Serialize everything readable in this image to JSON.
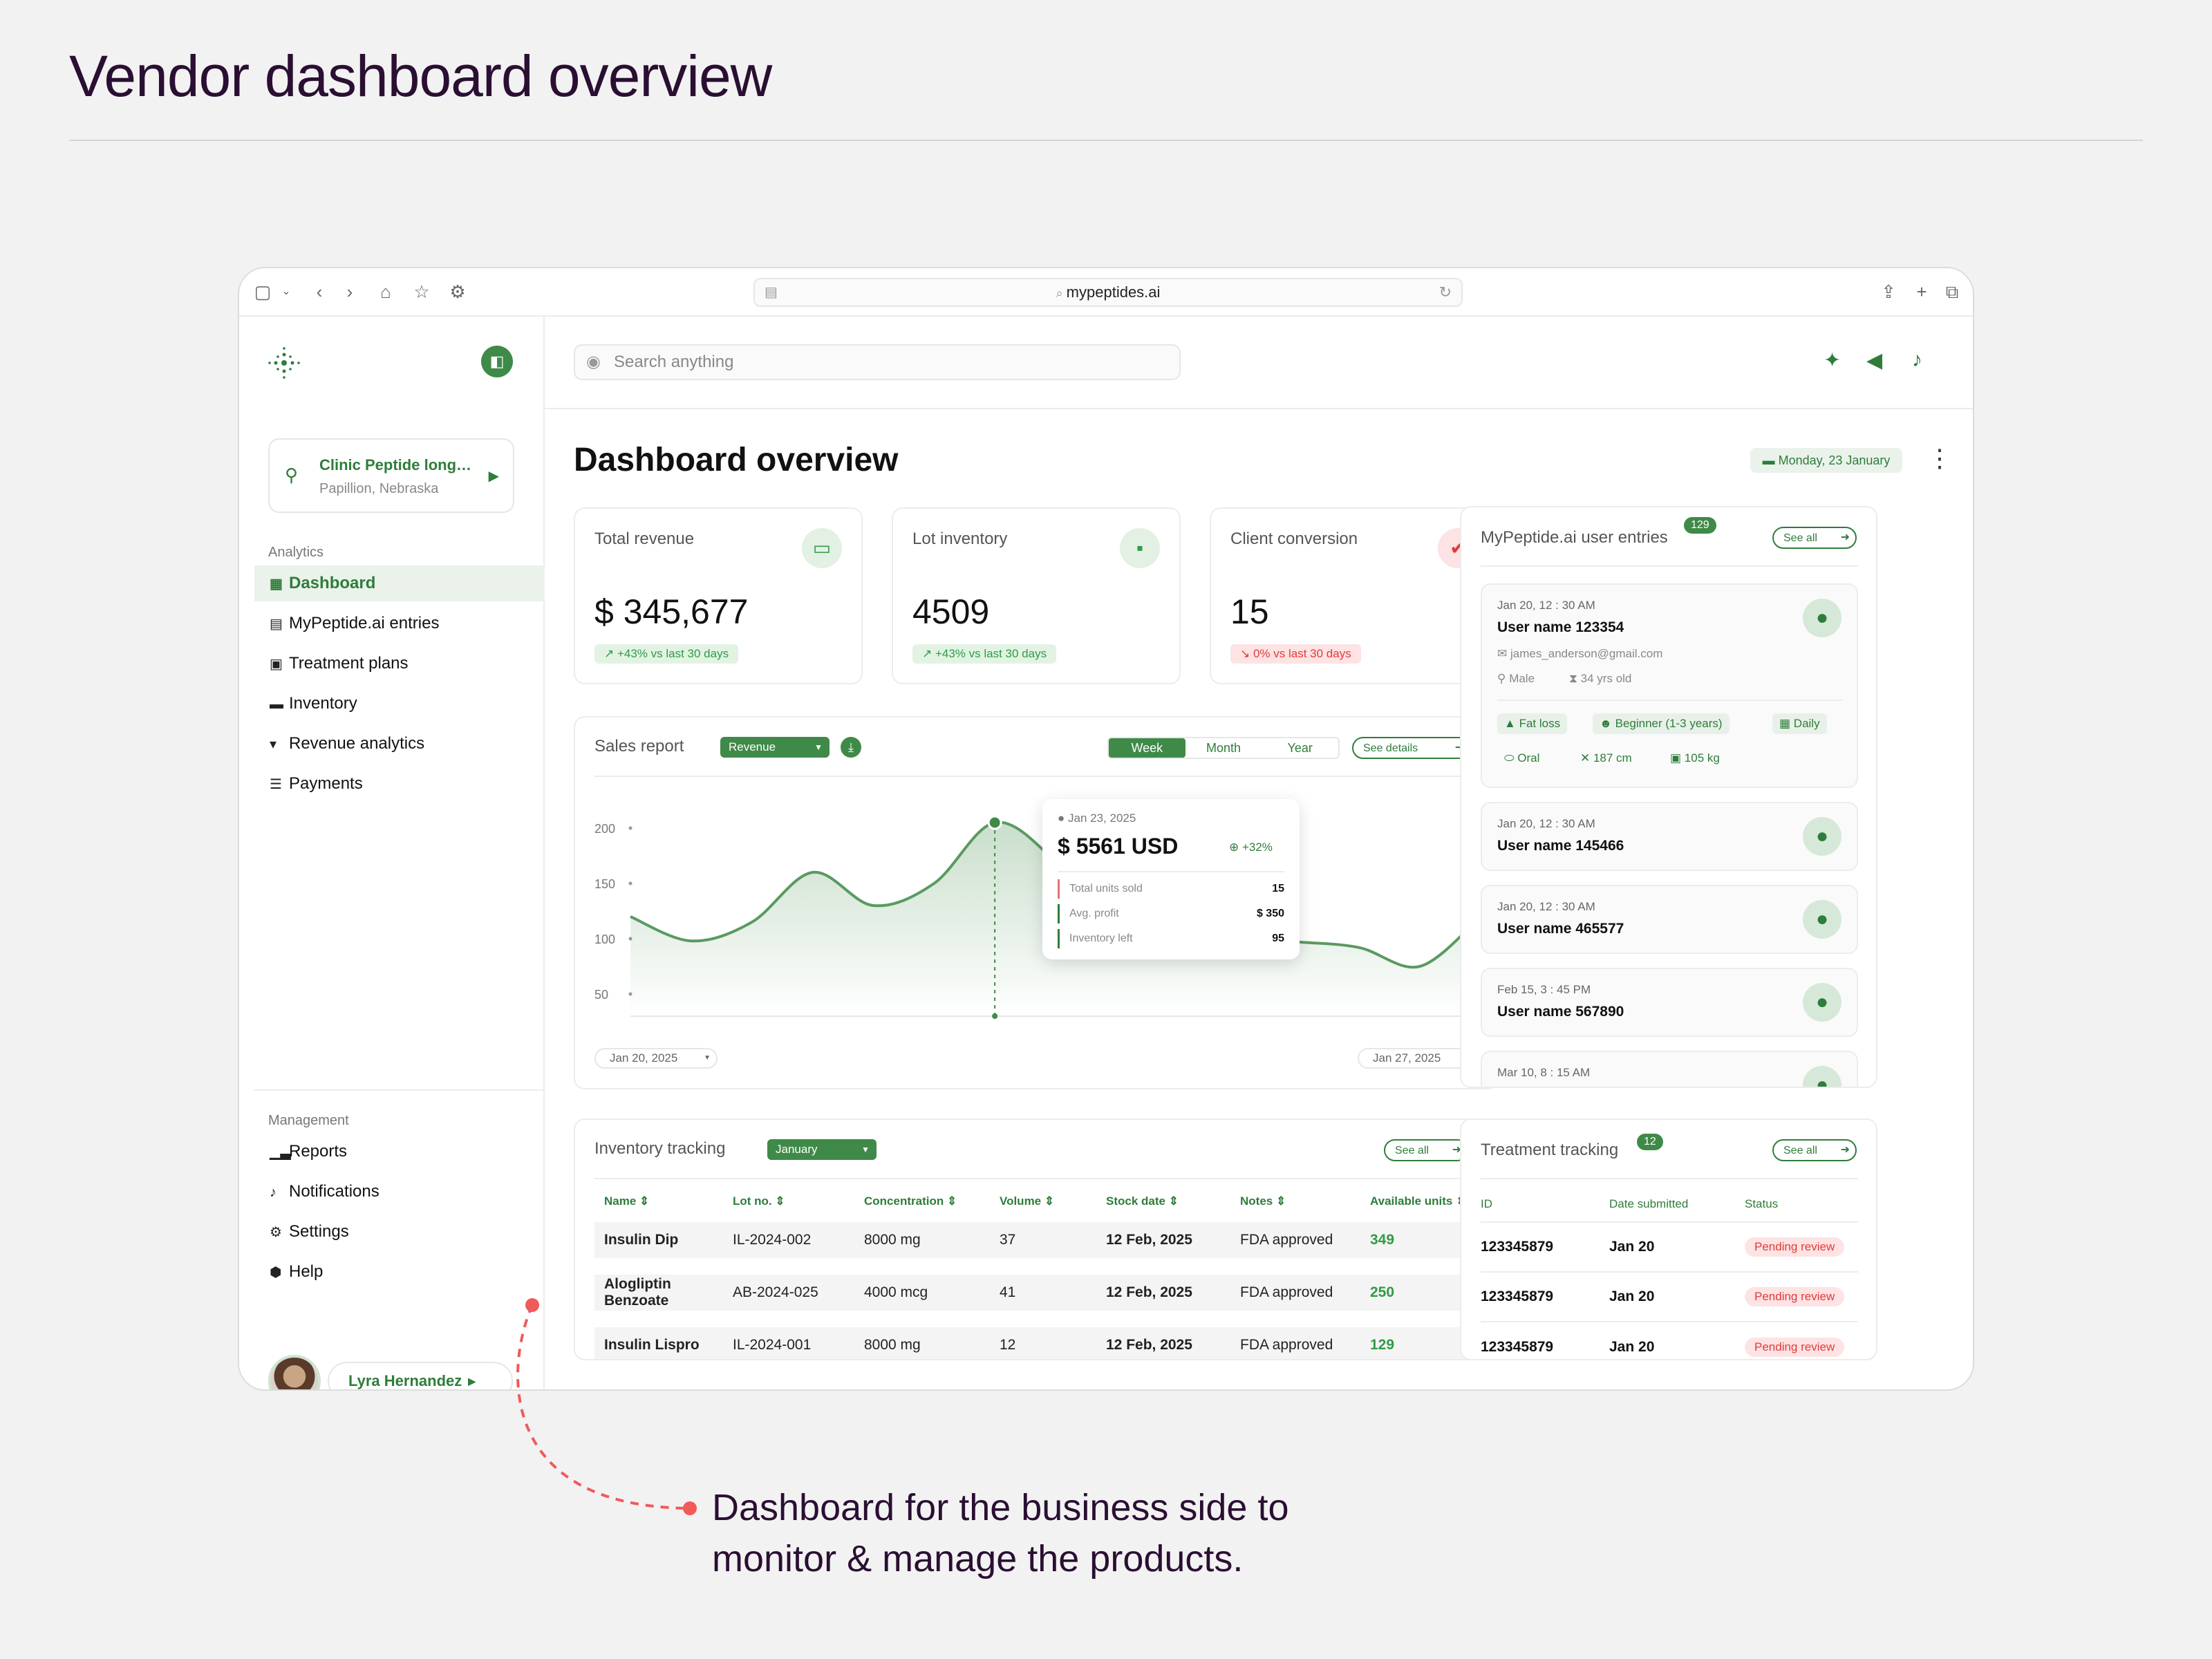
{
  "page": {
    "title": "Vendor dashboard overview",
    "caption_line1": "Dashboard for the business side to",
    "caption_line2": "monitor & manage the products."
  },
  "browser": {
    "url": "mypeptides.ai"
  },
  "sidebar": {
    "clinic": {
      "name": "Clinic Peptide long…",
      "location": "Papillion, Nebraska"
    },
    "section_analytics": "Analytics",
    "analytics_items": [
      {
        "label": "Dashboard",
        "icon": "grid-icon"
      },
      {
        "label": "MyPeptide.ai entries",
        "icon": "database-icon"
      },
      {
        "label": "Treatment plans",
        "icon": "clipboard-icon"
      },
      {
        "label": "Inventory",
        "icon": "box-icon"
      },
      {
        "label": "Revenue analytics",
        "icon": "chart-icon"
      },
      {
        "label": "Payments",
        "icon": "wallet-icon"
      }
    ],
    "section_management": "Management",
    "management_items": [
      {
        "label": "Reports",
        "icon": "bars-icon"
      },
      {
        "label": "Notifications",
        "icon": "bell-icon"
      },
      {
        "label": "Settings",
        "icon": "gear-icon"
      },
      {
        "label": "Help",
        "icon": "help-icon"
      }
    ],
    "user": {
      "name": "Lyra Hernandez"
    }
  },
  "header": {
    "search_placeholder": "Search anything"
  },
  "overview": {
    "title": "Dashboard overview",
    "date": "Monday, 23 January"
  },
  "kpis": [
    {
      "label": "Total revenue",
      "value": "$ 345,677",
      "change": "+43% vs last 30 days",
      "trend": "up"
    },
    {
      "label": "Lot inventory",
      "value": "4509",
      "change": "+43% vs last 30 days",
      "trend": "up"
    },
    {
      "label": "Client conversion",
      "value": "15",
      "change": "0% vs last 30 days",
      "trend": "down"
    }
  ],
  "sales": {
    "title": "Sales report",
    "metric": "Revenue",
    "periods": [
      "Week",
      "Month",
      "Year"
    ],
    "active_period": "Week",
    "see_details": "See details",
    "range_start": "Jan 20, 2025",
    "range_end": "Jan 27, 2025",
    "tooltip": {
      "date": "Jan 23, 2025",
      "value": "$ 5561 USD",
      "change": "+32%",
      "rows": [
        {
          "label": "Total units sold",
          "value": "15"
        },
        {
          "label": "Avg. profit",
          "value": "$ 350"
        },
        {
          "label": "Inventory left",
          "value": "95"
        }
      ]
    }
  },
  "chart_data": {
    "type": "area",
    "x": [
      0,
      0.5,
      1,
      1.5,
      2,
      2.5,
      3,
      3.5,
      4,
      4.5,
      5,
      5.5,
      6,
      6.5,
      7
    ],
    "y": [
      120,
      98,
      115,
      160,
      130,
      150,
      205,
      170,
      110,
      103,
      100,
      97,
      92,
      75,
      120
    ],
    "yticks": [
      50,
      100,
      150,
      200
    ],
    "ylim": [
      30,
      230
    ],
    "highlight_index": 6,
    "grid": false
  },
  "inventory": {
    "title": "Inventory tracking",
    "month": "January",
    "see_all": "See all",
    "columns": [
      "Name",
      "Lot no.",
      "Concentration",
      "Volume",
      "Stock date",
      "Notes",
      "Available units"
    ],
    "rows": [
      [
        "Insulin Dip",
        "IL-2024-002",
        "8000 mg",
        "37",
        "12 Feb, 2025",
        "FDA approved",
        "349"
      ],
      [
        "Alogliptin Benzoate",
        "AB-2024-025",
        "4000 mcg",
        "41",
        "12 Feb, 2025",
        "FDA approved",
        "250"
      ],
      [
        "Insulin Lispro",
        "IL-2024-001",
        "8000 mg",
        "12",
        "12 Feb, 2025",
        "FDA approved",
        "129"
      ]
    ]
  },
  "entries": {
    "title": "MyPeptide.ai user entries",
    "count": "129",
    "see_all": "See all",
    "first": {
      "date": "Jan 20, 12 : 30 AM",
      "user": "User name 123354",
      "email": "james_anderson@gmail.com",
      "gender": "Male",
      "age": "34 yrs old",
      "tags": [
        "Fat loss",
        "Beginner (1-3 years)",
        "Daily",
        "Oral",
        "187 cm",
        "105 kg"
      ]
    },
    "list": [
      {
        "date": "Jan 20, 12 : 30 AM",
        "user": "User name 145466"
      },
      {
        "date": "Jan 20, 12 : 30 AM",
        "user": "User name 465577"
      },
      {
        "date": "Feb 15, 3 : 45 PM",
        "user": "User name 567890"
      },
      {
        "date": "Mar 10, 8 : 15 AM",
        "user": ""
      }
    ]
  },
  "treatment": {
    "title": "Treatment tracking",
    "count": "12",
    "see_all": "See all",
    "columns": [
      "ID",
      "Date submitted",
      "Status"
    ],
    "rows": [
      [
        "123345879",
        "Jan 20",
        "Pending review"
      ],
      [
        "123345879",
        "Jan 20",
        "Pending review"
      ],
      [
        "123345879",
        "Jan 20",
        "Pending review"
      ]
    ]
  }
}
